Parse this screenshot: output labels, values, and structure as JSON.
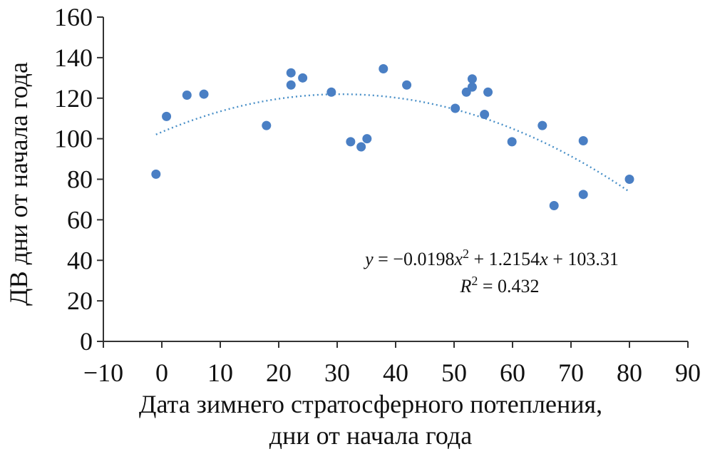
{
  "chart_data": {
    "type": "scatter",
    "xlabel_lines": [
      "Дата зимнего стратосферного потепления,",
      "дни от начала года"
    ],
    "ylabel": "ДВ дни от начала года",
    "xlim": [
      -10,
      90
    ],
    "ylim": [
      0,
      160
    ],
    "xticks": [
      -10,
      0,
      10,
      20,
      30,
      40,
      50,
      60,
      70,
      80,
      90
    ],
    "yticks": [
      0,
      20,
      40,
      60,
      80,
      100,
      120,
      140,
      160
    ],
    "xtick_labels": [
      "−10",
      "0",
      "10",
      "20",
      "30",
      "40",
      "50",
      "60",
      "70",
      "80",
      "90"
    ],
    "ytick_labels": [
      "0",
      "20",
      "40",
      "60",
      "80",
      "100",
      "120",
      "140",
      "160"
    ],
    "points": [
      {
        "x": -1,
        "y": 82.5
      },
      {
        "x": 0.8,
        "y": 111
      },
      {
        "x": 4.3,
        "y": 121.5
      },
      {
        "x": 7.2,
        "y": 122
      },
      {
        "x": 17.9,
        "y": 106.5
      },
      {
        "x": 22.1,
        "y": 132.5
      },
      {
        "x": 22.1,
        "y": 126.5
      },
      {
        "x": 24.1,
        "y": 130
      },
      {
        "x": 29,
        "y": 123
      },
      {
        "x": 32.3,
        "y": 98.5
      },
      {
        "x": 34.1,
        "y": 96
      },
      {
        "x": 35.1,
        "y": 100
      },
      {
        "x": 37.9,
        "y": 134.5
      },
      {
        "x": 41.9,
        "y": 126.5
      },
      {
        "x": 50.2,
        "y": 115
      },
      {
        "x": 52.1,
        "y": 123
      },
      {
        "x": 53.1,
        "y": 129.5
      },
      {
        "x": 53.1,
        "y": 125.5
      },
      {
        "x": 55.2,
        "y": 112
      },
      {
        "x": 55.8,
        "y": 123
      },
      {
        "x": 59.9,
        "y": 98.5
      },
      {
        "x": 65.1,
        "y": 106.5
      },
      {
        "x": 67.1,
        "y": 67
      },
      {
        "x": 72.1,
        "y": 99
      },
      {
        "x": 72.1,
        "y": 72.5
      },
      {
        "x": 80,
        "y": 80
      }
    ],
    "trendline": {
      "type": "polynomial",
      "a": -0.0198,
      "b": 1.2154,
      "c": 103.31,
      "x_range": [
        -1,
        80
      ],
      "equation_label": "y = −0.0198x² + 1.2154x + 103.31",
      "equation_parts": {
        "lhs": "y",
        "eq": " = −0.0198",
        "x1": "x",
        "sup": "2",
        "mid": " + 1.2154",
        "x2": "x",
        "rest": " + 103.31"
      },
      "r2_label": "R² = 0.432",
      "r2_parts": {
        "r": "R",
        "sup": "2",
        "rest": " = 0.432"
      },
      "color": "#4a90c8"
    },
    "marker_color": "#4a7fc4",
    "grid": false,
    "legend": "none"
  }
}
